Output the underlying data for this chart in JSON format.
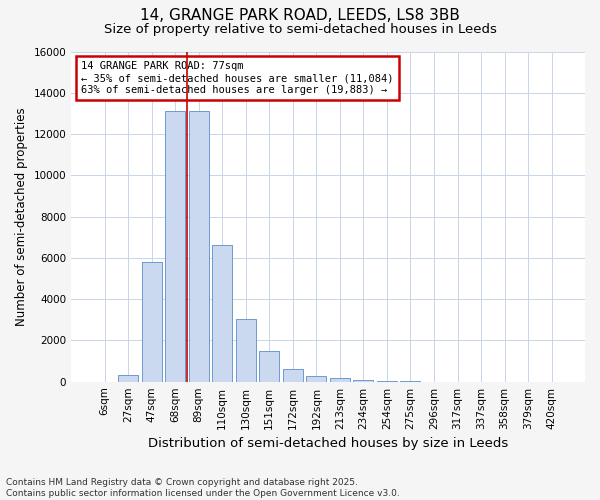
{
  "title1": "14, GRANGE PARK ROAD, LEEDS, LS8 3BB",
  "title2": "Size of property relative to semi-detached houses in Leeds",
  "xlabel": "Distribution of semi-detached houses by size in Leeds",
  "ylabel": "Number of semi-detached properties",
  "categories": [
    "6sqm",
    "27sqm",
    "47sqm",
    "68sqm",
    "89sqm",
    "110sqm",
    "130sqm",
    "151sqm",
    "172sqm",
    "192sqm",
    "213sqm",
    "234sqm",
    "254sqm",
    "275sqm",
    "296sqm",
    "317sqm",
    "337sqm",
    "358sqm",
    "379sqm",
    "420sqm"
  ],
  "values": [
    0,
    300,
    5800,
    13100,
    13100,
    6600,
    3050,
    1480,
    620,
    260,
    160,
    90,
    45,
    15,
    8,
    4,
    2,
    1,
    1,
    0
  ],
  "bar_color": "#cad9ef",
  "bar_edgecolor": "#5b8dc8",
  "vline_x": 3.5,
  "vline_color": "#cc0000",
  "annotation_title": "14 GRANGE PARK ROAD: 77sqm",
  "annotation_line1": "← 35% of semi-detached houses are smaller (11,084)",
  "annotation_line2": "63% of semi-detached houses are larger (19,883) →",
  "annotation_box_edgecolor": "#cc0000",
  "annotation_bg": "#ffffff",
  "ylim": [
    0,
    16000
  ],
  "yticks": [
    0,
    2000,
    4000,
    6000,
    8000,
    10000,
    12000,
    14000,
    16000
  ],
  "footnote1": "Contains HM Land Registry data © Crown copyright and database right 2025.",
  "footnote2": "Contains public sector information licensed under the Open Government Licence v3.0.",
  "fig_bg_color": "#f5f5f5",
  "plot_bg_color": "#ffffff",
  "grid_color": "#c8d4e8",
  "title1_fontsize": 11,
  "title2_fontsize": 9.5,
  "tick_fontsize": 7.5,
  "ylabel_fontsize": 8.5,
  "xlabel_fontsize": 9.5,
  "footnote_fontsize": 6.5
}
